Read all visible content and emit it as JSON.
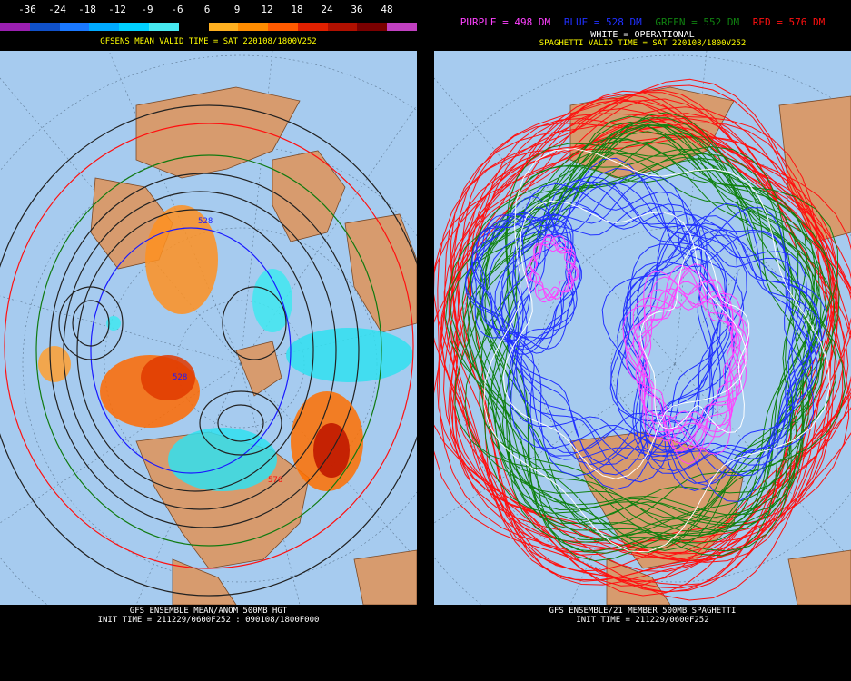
{
  "left": {
    "colorbar": {
      "labels": [
        "-36",
        "-24",
        "-18",
        "-12",
        "-9",
        "-6",
        "6",
        "9",
        "12",
        "18",
        "24",
        "36",
        "48"
      ],
      "colors": [
        "#9a1fb0",
        "#1050c8",
        "#1a78ff",
        "#00aaff",
        "#00d0ff",
        "#46e8f0",
        "#000000",
        "#ffb020",
        "#ff8c00",
        "#ff5a00",
        "#e02000",
        "#b01000",
        "#7a0000",
        "#c040c0"
      ]
    },
    "title": "GFSENS MEAN VALID TIME = SAT 220108/1800V252",
    "contour_labels": {
      "c1": "528",
      "c2": "528",
      "c3": "576"
    },
    "footer": {
      "line1": "GFS ENSEMBLE MEAN/ANOM 500MB HGT",
      "line2": "INIT TIME = 211229/0600F252 : 090108/1800F000"
    }
  },
  "right": {
    "legend": {
      "purple": "PURPLE = 498 DM",
      "blue": "BLUE = 528 DM",
      "green": "GREEN = 552 DM",
      "red": "RED = 576 DM"
    },
    "operational": "WHITE = OPERATIONAL",
    "title": "SPAGHETTI VALID TIME = SAT 220108/1800V252",
    "footer": {
      "line1": "GFS ENSEMBLE/21 MEMBER 500MB SPAGHETTI",
      "line2": "INIT TIME = 211229/0600F252"
    }
  },
  "colors": {
    "ocean": "#a6cbef",
    "land": "#d79b6e",
    "purple": "#ff40ff",
    "blue": "#2030ff",
    "green": "#108010",
    "red": "#ff1010",
    "white": "#ffffff"
  },
  "icons": [
    "polar-stereographic-map",
    "colorbar"
  ]
}
